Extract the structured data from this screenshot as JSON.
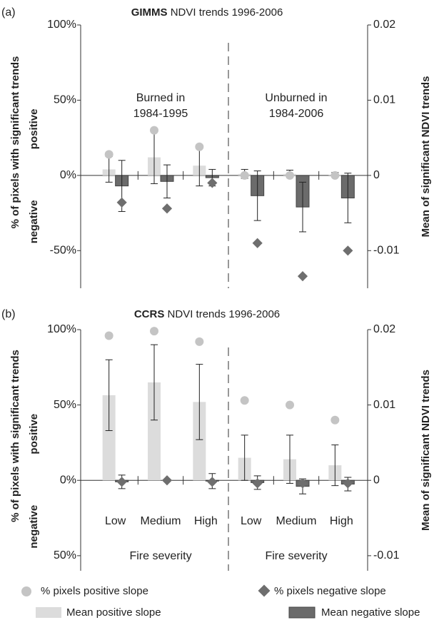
{
  "chart_data": [
    {
      "type": "bar",
      "panel_label": "(a)",
      "title_bold": "GIMMS",
      "title": "NDVI trends 1996-2006",
      "ylabel": "% of pixels with significant trends",
      "ylabel_positive": "positive",
      "ylabel_negative": "negative",
      "y2label": "Mean of significant NDVI trends",
      "categories": [
        null,
        null,
        null,
        null,
        null,
        null
      ],
      "groups": [
        {
          "label": [
            "Burned in",
            "1984-1995"
          ]
        },
        {
          "label": [
            "Unburned in",
            "1984-2006"
          ]
        }
      ],
      "ylim": [
        -75,
        100
      ],
      "yticks": [
        {
          "value": 100,
          "label": "100%"
        },
        {
          "value": 50,
          "label": "50%"
        },
        {
          "value": 0,
          "label": "0%"
        },
        {
          "value": -50,
          "label": "-50%"
        }
      ],
      "y2lim": [
        -0.015,
        0.02
      ],
      "y2ticks": [
        0.02,
        0.01,
        0,
        -0.01
      ],
      "series": [
        {
          "name": "% pixels positive slope",
          "marker": "circle",
          "color": "#c4c4c4",
          "values": [
            14,
            30,
            19,
            0,
            0,
            0
          ]
        },
        {
          "name": "% pixels negative slope",
          "marker": "diamond",
          "color": "#6e6e6e",
          "values": [
            -18,
            -22,
            -5,
            -45,
            -67,
            -50
          ]
        },
        {
          "name": "Mean positive slope",
          "marker": "bar",
          "axis": "y2",
          "color": "#dcdcdc",
          "values": [
            0.0008,
            0.0024,
            0.0013,
            0.0002,
            0.0002,
            0.0001
          ],
          "errors": [
            0.0017,
            0.0035,
            0.0027,
            0.0006,
            0.0005,
            0.0003
          ]
        },
        {
          "name": "Mean negative slope",
          "marker": "bar",
          "axis": "y2",
          "color": "#6b6b6b",
          "values": [
            -0.0014,
            -0.0008,
            -0.0003,
            -0.0027,
            -0.0042,
            -0.003
          ],
          "errors": [
            0.0034,
            0.0022,
            0.0011,
            0.0033,
            0.0033,
            0.0033
          ]
        }
      ]
    },
    {
      "type": "bar",
      "panel_label": "(b)",
      "title_bold": "CCRS",
      "title": "NDVI trends 1996-2006",
      "ylabel": "% of pixels with significant trends",
      "ylabel_positive": "positive",
      "ylabel_negative": "negative",
      "y2label": "Mean of significant NDVI trends",
      "categories": [
        "Low",
        "Medium",
        "High",
        "Low",
        "Medium",
        "High"
      ],
      "groups": [
        {
          "label": [
            "Fire severity"
          ]
        },
        {
          "label": [
            "Fire severity"
          ]
        }
      ],
      "ylim": [
        -60,
        100
      ],
      "yticks": [
        {
          "value": 100,
          "label": "100%"
        },
        {
          "value": 50,
          "label": "50%"
        },
        {
          "value": 0,
          "label": "0%"
        },
        {
          "value": -50,
          "label": "50%"
        }
      ],
      "y2lim": [
        -0.012,
        0.02
      ],
      "y2ticks": [
        0.02,
        0.01,
        0,
        -0.01
      ],
      "series": [
        {
          "name": "% pixels positive slope",
          "marker": "circle",
          "color": "#c4c4c4",
          "values": [
            96,
            99,
            92,
            53,
            50,
            40
          ]
        },
        {
          "name": "% pixels negative slope",
          "marker": "diamond",
          "color": "#6e6e6e",
          "values": [
            -1,
            0,
            -1,
            -2,
            -2,
            -2
          ]
        },
        {
          "name": "Mean positive slope",
          "marker": "bar",
          "axis": "y2",
          "color": "#dcdcdc",
          "values": [
            0.0113,
            0.013,
            0.0104,
            0.003,
            0.0028,
            0.002
          ],
          "errors": [
            0.0047,
            0.005,
            0.005,
            0.003,
            0.0032,
            0.0027
          ]
        },
        {
          "name": "Mean negative slope",
          "marker": "bar",
          "axis": "y2",
          "color": "#6b6b6b",
          "values": [
            -0.0002,
            0,
            -0.0001,
            -0.0003,
            -0.0008,
            -0.0005
          ],
          "errors": [
            0.0009,
            0,
            0.001,
            0.0009,
            0.001,
            0.0009
          ]
        }
      ]
    }
  ]
}
